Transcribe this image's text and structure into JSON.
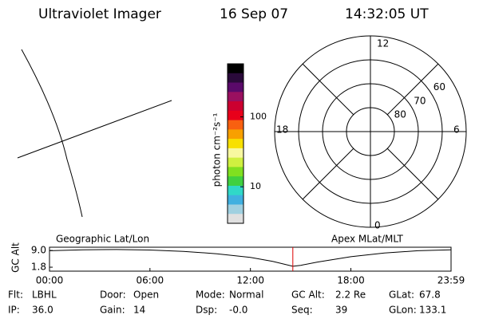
{
  "header": {
    "title": "Ultraviolet Imager",
    "date": "16 Sep 07",
    "time": "14:32:05 UT"
  },
  "colorbar": {
    "label": "photon cm⁻²s⁻¹",
    "log_scale": true,
    "ylim": [
      3,
      575
    ],
    "yticks": [
      10,
      100
    ],
    "colors": [
      "#000000",
      "#2a0a3a",
      "#5a0a6a",
      "#9a1060",
      "#cc0030",
      "#e8001a",
      "#f86010",
      "#f8a000",
      "#f8e000",
      "#f8f8a0",
      "#d0f040",
      "#80e020",
      "#40d040",
      "#30d8c8",
      "#40b0e0",
      "#a0d0e0",
      "#e0e0e0"
    ]
  },
  "geo_panel": {
    "label": "Geographic Lat/Lon"
  },
  "polar": {
    "label": "Apex MLat/MLT",
    "rlim": [
      90,
      50
    ],
    "lat_circles": [
      80,
      70,
      60
    ],
    "mlt_labels": {
      "top": "12",
      "right": "6",
      "bottom": "0",
      "left": "18"
    }
  },
  "orbit": {
    "ylabel": "GC Alt",
    "xlim": [
      0,
      1439
    ],
    "ylim": [
      0.1,
      10.4
    ],
    "yticks": [
      {
        "value": 9,
        "label": "9.0"
      },
      1.8
    ],
    "xticks": [
      {
        "value": 0,
        "label": "00:00"
      },
      {
        "value": 360,
        "label": "06:00"
      },
      {
        "value": 720,
        "label": "12:00"
      },
      {
        "value": 1080,
        "label": "18:00"
      },
      {
        "value": 1439,
        "label": "23:59"
      }
    ],
    "x": [
      0,
      120,
      240,
      360,
      480,
      600,
      720,
      800,
      872,
      900,
      960,
      1080,
      1200,
      1320,
      1439
    ],
    "values": [
      8.9,
      9.3,
      9.4,
      9.2,
      8.6,
      7.6,
      6.0,
      4.3,
      2.2,
      2.6,
      4.0,
      6.3,
      7.9,
      8.9,
      9.3
    ],
    "marker_x": 872,
    "marker_color": "#dd0000"
  },
  "footer": {
    "rows": [
      [
        [
          "Flt:",
          "LBHL"
        ],
        [
          "Door:",
          "Open"
        ],
        [
          "Mode:",
          "Normal"
        ],
        [
          "GC Alt:",
          "2.2 Re"
        ],
        [
          "GLat:",
          "67.8"
        ]
      ],
      [
        [
          "IP:",
          "36.0"
        ],
        [
          "Gain:",
          "14"
        ],
        [
          "Dsp:",
          "-0.0"
        ],
        [
          "Seq:",
          "39"
        ],
        [
          "GLon:",
          "133.1"
        ]
      ]
    ]
  }
}
